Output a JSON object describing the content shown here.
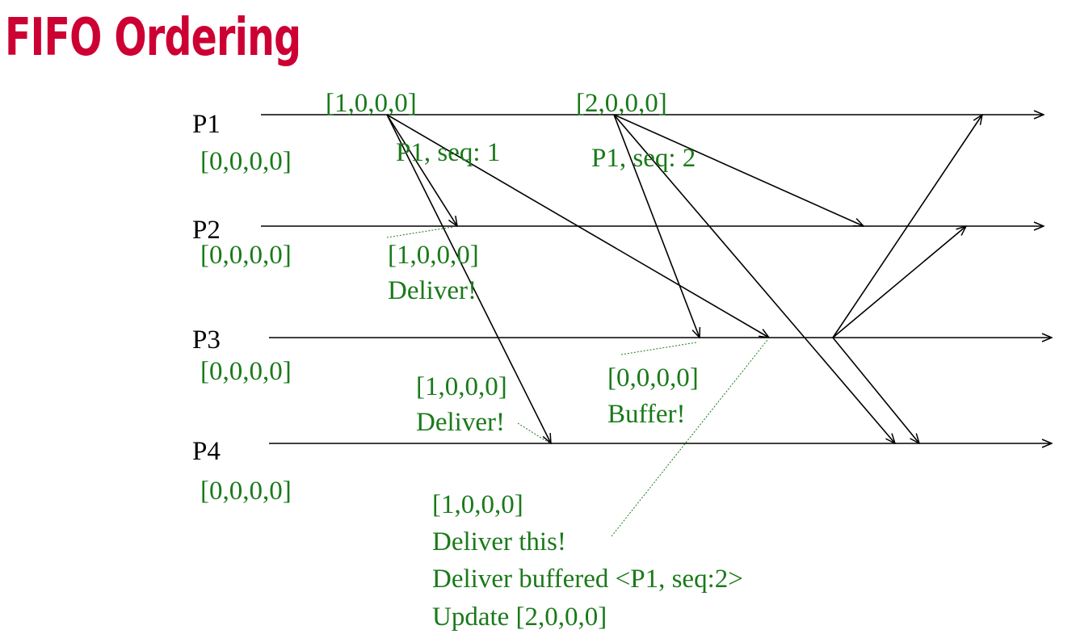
{
  "title": "FIFO Ordering",
  "colors": {
    "title": "#cc0033",
    "annotation": "#1a7a1a",
    "line": "#000000"
  },
  "processes": [
    {
      "label": "P1",
      "initial_vector": "[0,0,0,0]"
    },
    {
      "label": "P2",
      "initial_vector": "[0,0,0,0]"
    },
    {
      "label": "P3",
      "initial_vector": "[0,0,0,0]"
    },
    {
      "label": "P4",
      "initial_vector": "[0,0,0,0]"
    }
  ],
  "send_events": [
    {
      "vector": "[1,0,0,0]",
      "message": "P1, seq: 1"
    },
    {
      "vector": "[2,0,0,0]",
      "message": "P1, seq: 2"
    }
  ],
  "receive_notes": {
    "p2_seq1": {
      "vector": "[1,0,0,0]",
      "action": "Deliver!"
    },
    "p3_seq2": {
      "vector": "[0,0,0,0]",
      "action": "Buffer!"
    },
    "p4_seq1": {
      "vector": "[1,0,0,0]",
      "action": "Deliver!"
    },
    "p3_seq1": {
      "vector": "[1,0,0,0]",
      "line1": "Deliver this!",
      "line2": "Deliver buffered <P1, seq:2>",
      "line3": "Update [2,0,0,0]"
    }
  }
}
